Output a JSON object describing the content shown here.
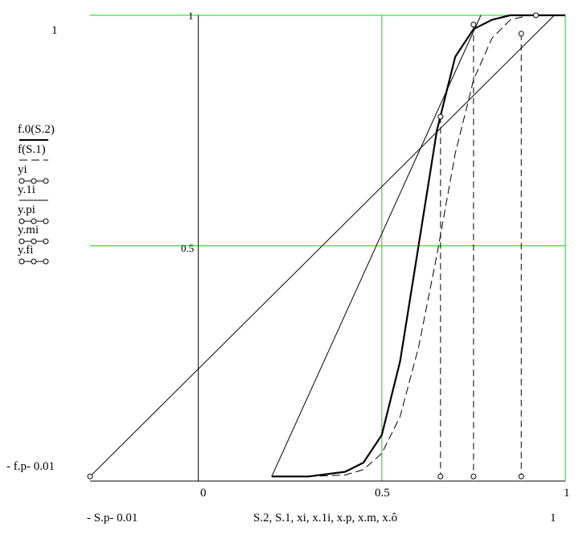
{
  "labels": {
    "y_top": "1",
    "y_bottom": "- f.p- 0.01",
    "x_left": "- S.p- 0.01",
    "x_right": "1",
    "x_axis_expr": "S.2, S.1, xi, x.1i, x.p, x.m, x.ô",
    "tick_x": [
      "0",
      "0.5",
      "1"
    ],
    "tick_y": [
      "0.5",
      "1"
    ]
  },
  "legend": [
    {
      "label": "f.0(S.2)",
      "style": "thick"
    },
    {
      "label": "f(S.1)",
      "style": "dashed"
    },
    {
      "label": "yi",
      "style": "circles"
    },
    {
      "label": "y.1i",
      "style": "solid"
    },
    {
      "label": "y.pi",
      "style": "circles"
    },
    {
      "label": "y.mi",
      "style": "circles"
    },
    {
      "label": "y.fi",
      "style": "circles"
    }
  ],
  "colors": {
    "grid": "#00dd00",
    "axis": "#000000",
    "curve": "#000000"
  },
  "chart_data": {
    "type": "line",
    "xlim": [
      -0.295,
      1.0
    ],
    "ylim": [
      -0.01,
      1.0
    ],
    "grid": true,
    "series": [
      {
        "name": "f.0(S.2)",
        "style": "thick",
        "x": [
          0.2,
          0.3,
          0.4,
          0.45,
          0.5,
          0.55,
          0.6,
          0.65,
          0.7,
          0.75,
          0.8,
          0.85,
          0.9,
          1.0
        ],
        "y": [
          0.0,
          0.0,
          0.01,
          0.03,
          0.09,
          0.25,
          0.5,
          0.75,
          0.91,
          0.97,
          0.99,
          1.0,
          1.0,
          1.0
        ]
      },
      {
        "name": "f(S.1)",
        "style": "dashed",
        "x": [
          0.2,
          0.3,
          0.4,
          0.45,
          0.5,
          0.55,
          0.6,
          0.65,
          0.7,
          0.75,
          0.8,
          0.85,
          0.9,
          1.0
        ],
        "y": [
          0.0,
          0.0,
          0.003,
          0.015,
          0.05,
          0.13,
          0.28,
          0.48,
          0.7,
          0.86,
          0.95,
          0.99,
          1.0,
          1.0
        ]
      },
      {
        "name": "y.1i",
        "style": "thin",
        "x": [
          0.2,
          0.77
        ],
        "y": [
          0.0,
          1.0
        ]
      },
      {
        "name": "y.pi",
        "style": "thin",
        "x": [
          -0.295,
          0.97
        ],
        "y": [
          0.0,
          1.0
        ]
      },
      {
        "name": "yi",
        "style": "circles",
        "x": [
          -0.295,
          0.66,
          0.75,
          0.88,
          0.92
        ],
        "y": [
          0.0,
          0.78,
          0.98,
          0.96,
          1.0
        ]
      },
      {
        "name": "drops",
        "style": "dashed-vertical",
        "x": [
          0.66,
          0.75,
          0.88
        ],
        "y": [
          0.78,
          0.98,
          0.96
        ]
      },
      {
        "name": "y.fi",
        "style": "circles",
        "x": [
          0.66,
          0.75,
          0.88
        ],
        "y": [
          0.0,
          0.0,
          0.0
        ]
      }
    ]
  }
}
